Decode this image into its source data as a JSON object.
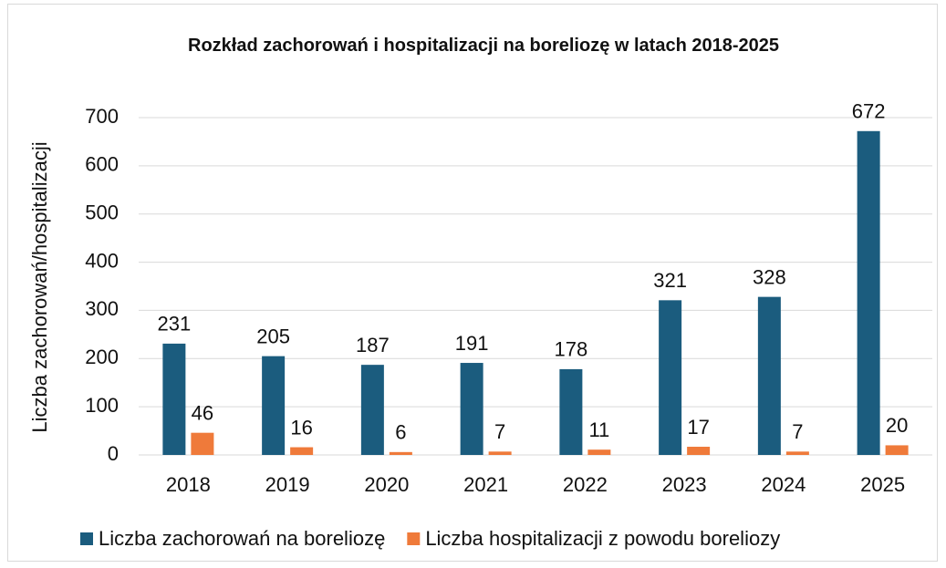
{
  "chart_data": {
    "type": "bar",
    "title": "Rozkład zachorowań i hospitalizacji na boreliozę w latach 2018-2025",
    "y_label": "Liczba zachorowań/hospitalizacji",
    "categories": [
      "2018",
      "2019",
      "2020",
      "2021",
      "2022",
      "2023",
      "2024",
      "2025"
    ],
    "series": [
      {
        "name": "Liczba zachorowań na boreliozę",
        "color": "#1b5c7e",
        "values": [
          231,
          205,
          187,
          191,
          178,
          321,
          328,
          672
        ]
      },
      {
        "name": "Liczba hospitalizacji z powodu boreliozy",
        "color": "#ef7a3a",
        "values": [
          46,
          16,
          6,
          7,
          11,
          17,
          7,
          20
        ]
      }
    ],
    "ylim": [
      0,
      700
    ],
    "yticks": [
      0,
      100,
      200,
      300,
      400,
      500,
      600,
      700
    ],
    "grid": true,
    "legend": "bottom"
  }
}
